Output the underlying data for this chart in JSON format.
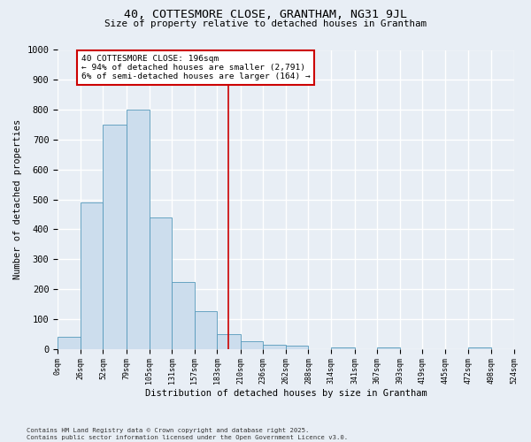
{
  "title": "40, COTTESMORE CLOSE, GRANTHAM, NG31 9JL",
  "subtitle": "Size of property relative to detached houses in Grantham",
  "xlabel": "Distribution of detached houses by size in Grantham",
  "ylabel": "Number of detached properties",
  "bar_color": "#ccdded",
  "bar_edge_color": "#5599bb",
  "background_color": "#e8eef5",
  "plot_bg_color": "#e8eef5",
  "grid_color": "#ffffff",
  "bin_edges": [
    0,
    26,
    52,
    79,
    105,
    131,
    157,
    183,
    210,
    236,
    262,
    288,
    314,
    341,
    367,
    393,
    419,
    445,
    472,
    498,
    524
  ],
  "bin_labels": [
    "0sqm",
    "26sqm",
    "52sqm",
    "79sqm",
    "105sqm",
    "131sqm",
    "157sqm",
    "183sqm",
    "210sqm",
    "236sqm",
    "262sqm",
    "288sqm",
    "314sqm",
    "341sqm",
    "367sqm",
    "393sqm",
    "419sqm",
    "445sqm",
    "472sqm",
    "498sqm",
    "524sqm"
  ],
  "bar_heights": [
    40,
    490,
    750,
    800,
    440,
    225,
    125,
    50,
    27,
    15,
    10,
    0,
    5,
    0,
    5,
    0,
    0,
    0,
    5,
    0
  ],
  "property_size": 196,
  "vline_color": "#cc0000",
  "annotation_title": "40 COTTESMORE CLOSE: 196sqm",
  "annotation_line1": "← 94% of detached houses are smaller (2,791)",
  "annotation_line2": "6% of semi-detached houses are larger (164) →",
  "annotation_box_color": "#ffffff",
  "annotation_box_edge": "#cc0000",
  "ylim": [
    0,
    1000
  ],
  "yticks": [
    0,
    100,
    200,
    300,
    400,
    500,
    600,
    700,
    800,
    900,
    1000
  ],
  "footer_line1": "Contains HM Land Registry data © Crown copyright and database right 2025.",
  "footer_line2": "Contains public sector information licensed under the Open Government Licence v3.0."
}
